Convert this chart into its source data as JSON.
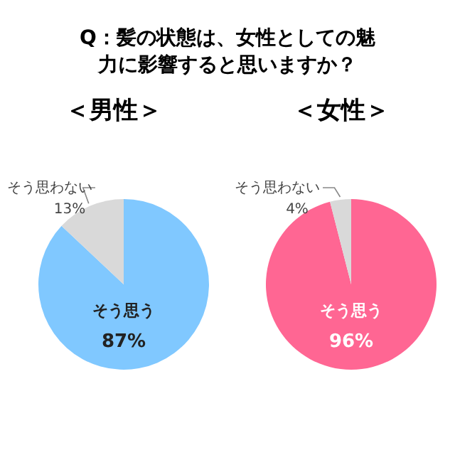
{
  "chart_data": [
    {
      "type": "pie",
      "title": "Q：髪の状態は、女性としての魅力に影響すると思いますか？",
      "subtitle": "＜男性＞",
      "categories": [
        "そう思う",
        "そう思わない"
      ],
      "values": [
        87,
        13
      ],
      "value_labels": [
        "87%",
        "13%"
      ],
      "colors": [
        "#80c8ff",
        "#d9d9d9"
      ],
      "legend": false
    },
    {
      "type": "pie",
      "subtitle": "＜女性＞",
      "categories": [
        "そう思う",
        "そう思わない"
      ],
      "values": [
        96,
        4
      ],
      "value_labels": [
        "96%",
        "4%"
      ],
      "colors": [
        "#ff6693",
        "#d9d9d9"
      ],
      "legend": false
    }
  ]
}
